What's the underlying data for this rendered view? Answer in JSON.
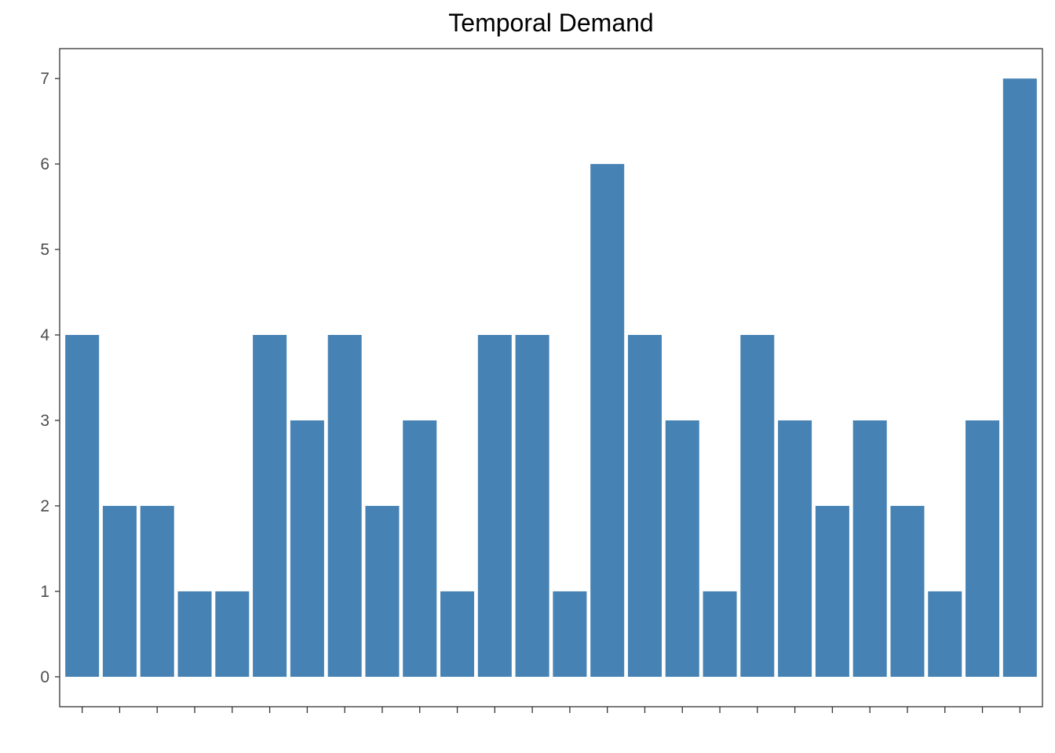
{
  "chart_data": {
    "type": "bar",
    "title": "Temporal Demand",
    "xlabel": "",
    "ylabel": "",
    "categories": [
      "",
      "",
      "",
      "",
      "",
      "",
      "",
      "",
      "",
      "",
      "",
      "",
      "",
      "",
      "",
      "",
      "",
      "",
      "",
      "",
      "",
      "",
      "",
      "",
      "",
      ""
    ],
    "values": [
      4,
      2,
      2,
      1,
      1,
      4,
      3,
      4,
      2,
      3,
      1,
      4,
      4,
      1,
      6,
      4,
      3,
      1,
      4,
      3,
      2,
      3,
      2,
      1,
      3,
      7
    ],
    "ylim": [
      -0.35,
      7.35
    ],
    "yticks": [
      0,
      1,
      2,
      3,
      4,
      5,
      6,
      7
    ],
    "x_tick_labels_shown": false,
    "grid": false,
    "legend": "none",
    "bar_color": "#4682b4",
    "panel_border_color": "#333333",
    "tick_color": "#333333",
    "tick_label_color": "#4d4d4d"
  }
}
